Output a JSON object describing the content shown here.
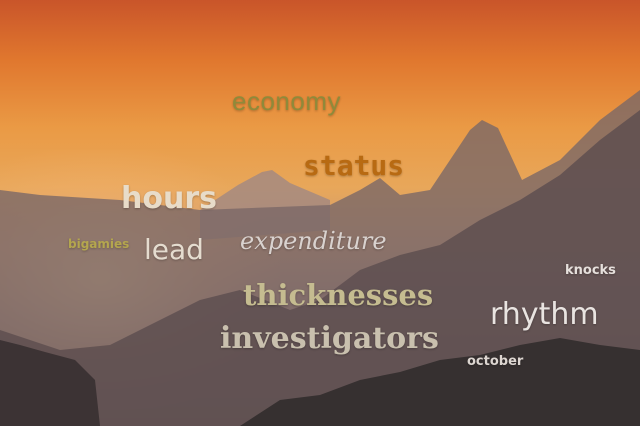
{
  "words": {
    "economy": "economy",
    "status": "status",
    "hours": "hours",
    "bigamies": "bigamies",
    "lead": "lead",
    "expenditure": "expenditure",
    "knocks": "knocks",
    "thicknesses": "thicknesses",
    "rhythm": "rhythm",
    "investigators": "investigators",
    "october": "october"
  },
  "colors": {
    "sky_top": "#c9552a",
    "sky_glow": "#ea9a45",
    "mountain_far": "#8a7570",
    "mountain_mid": "#5c4c4d",
    "mountain_near": "#3b3233"
  }
}
